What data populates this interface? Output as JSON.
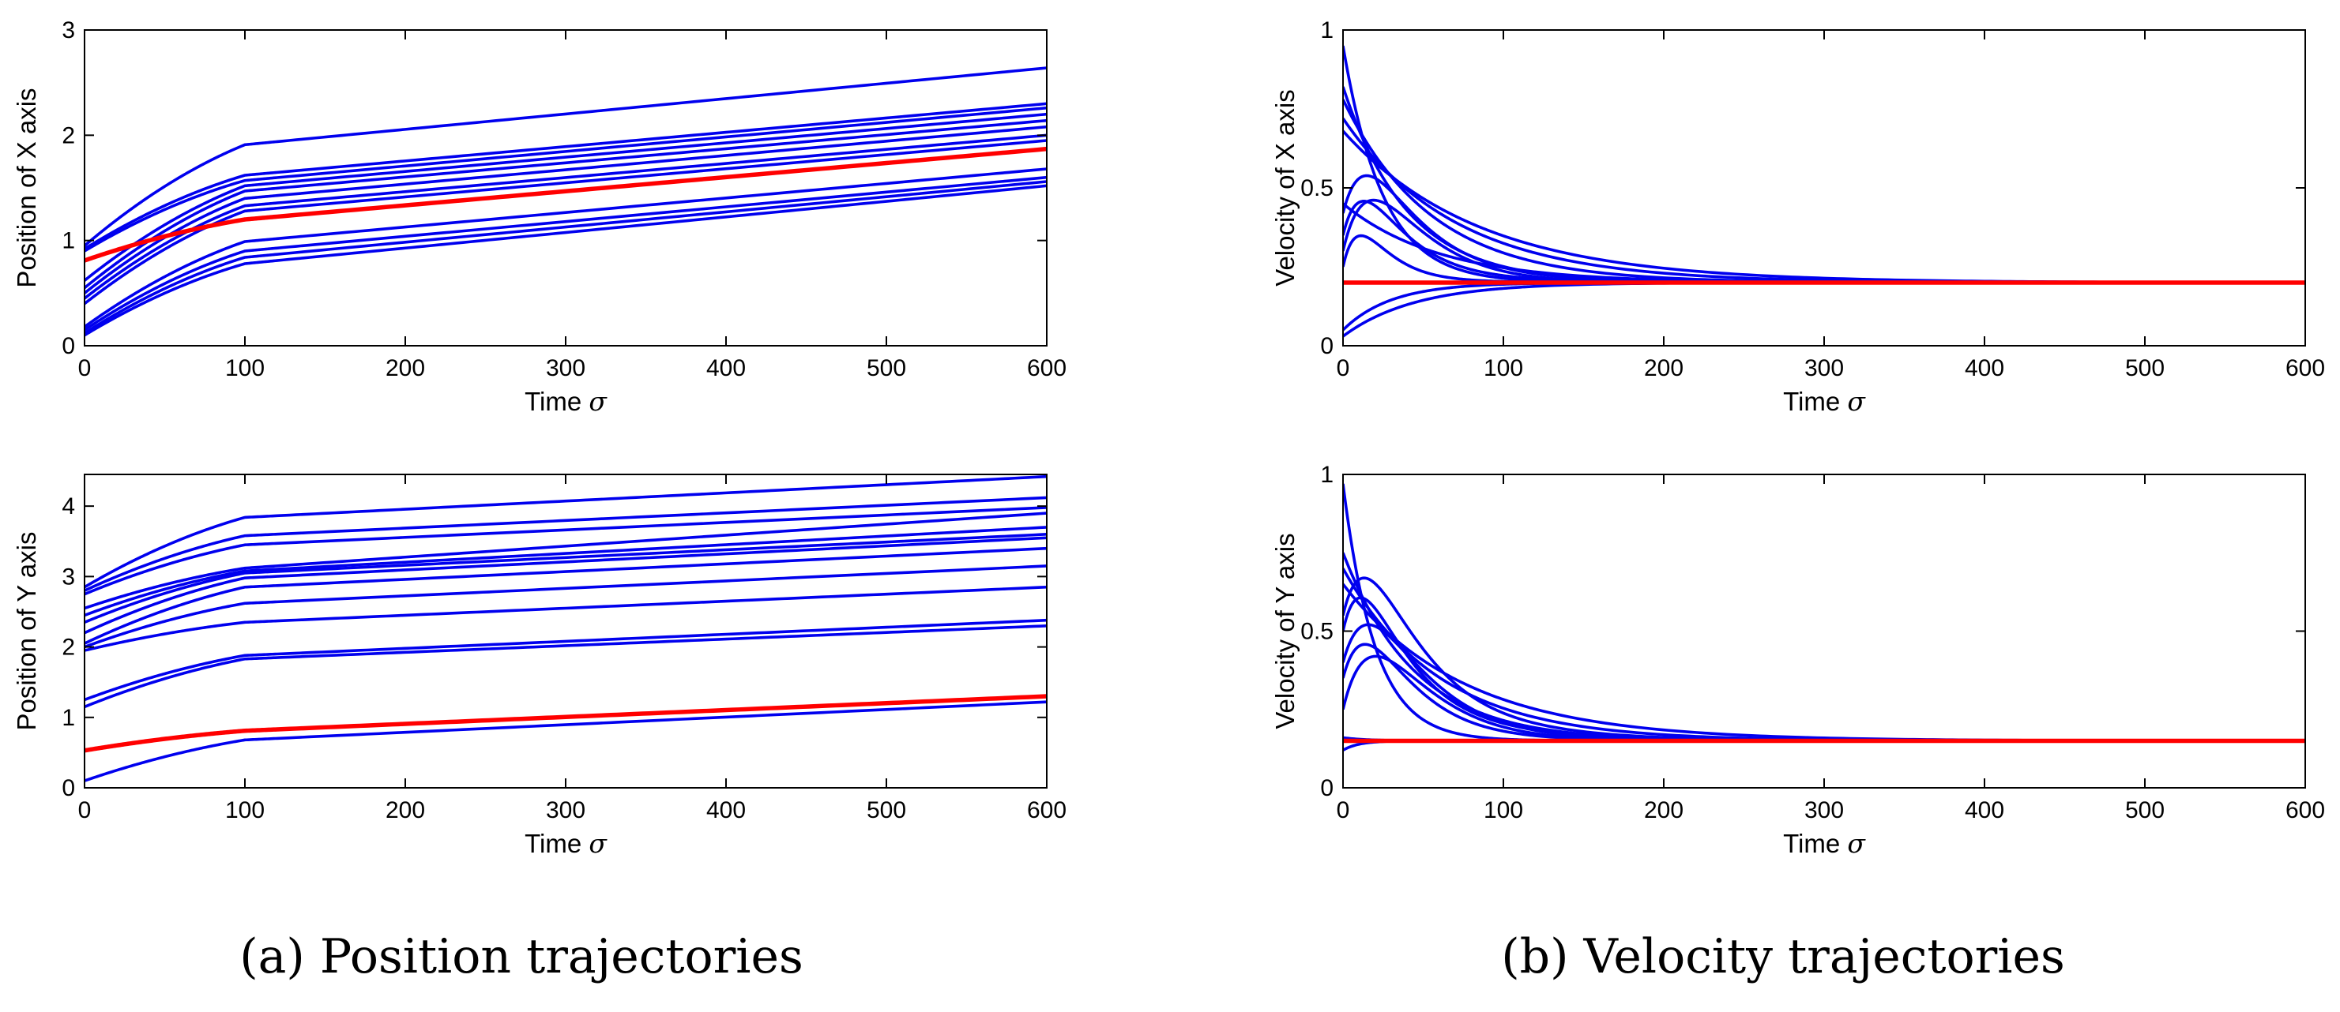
{
  "figure": {
    "captions": {
      "a": "(a)  Position trajectories",
      "b": "(b)  Velocity trajectories"
    }
  },
  "colors": {
    "follower": "#0000ee",
    "leader": "#ff0000"
  },
  "chart_data": [
    {
      "id": "pos_x",
      "type": "line",
      "ylabel": "Position of X axis",
      "xlabel": "Time",
      "xlabel_symbol": "σ",
      "xlim": [
        0,
        600
      ],
      "ylim": [
        0,
        3
      ],
      "xticks": [
        0,
        100,
        200,
        300,
        400,
        500,
        600
      ],
      "yticks": [
        0,
        1,
        2,
        3
      ],
      "series": [
        {
          "name": "follower 1",
          "kind": "pos",
          "y0": 0.95,
          "y100": 1.91,
          "y600": 2.64
        },
        {
          "name": "follower 2",
          "kind": "pos",
          "y0": 0.92,
          "y100": 1.62,
          "y600": 2.3
        },
        {
          "name": "follower 3",
          "kind": "pos",
          "y0": 0.9,
          "y100": 1.57,
          "y600": 2.26
        },
        {
          "name": "follower 4",
          "kind": "pos",
          "y0": 0.62,
          "y100": 1.52,
          "y600": 2.2
        },
        {
          "name": "follower 5",
          "kind": "pos",
          "y0": 0.55,
          "y100": 1.47,
          "y600": 2.14
        },
        {
          "name": "follower 6",
          "kind": "pos",
          "y0": 0.5,
          "y100": 1.4,
          "y600": 2.08
        },
        {
          "name": "follower 7",
          "kind": "pos",
          "y0": 0.45,
          "y100": 1.33,
          "y600": 2.0
        },
        {
          "name": "follower 8",
          "kind": "pos",
          "y0": 0.4,
          "y100": 1.28,
          "y600": 1.95
        },
        {
          "name": "follower 9",
          "kind": "pos",
          "y0": 0.18,
          "y100": 0.99,
          "y600": 1.68
        },
        {
          "name": "follower 10",
          "kind": "pos",
          "y0": 0.15,
          "y100": 0.9,
          "y600": 1.6
        },
        {
          "name": "follower 11",
          "kind": "pos",
          "y0": 0.12,
          "y100": 0.84,
          "y600": 1.56
        },
        {
          "name": "follower 12",
          "kind": "pos",
          "y0": 0.1,
          "y100": 0.78,
          "y600": 1.52
        },
        {
          "name": "leader",
          "kind": "pos",
          "leader": true,
          "y0": 0.81,
          "y100": 1.2,
          "y600": 1.87
        }
      ]
    },
    {
      "id": "pos_y",
      "type": "line",
      "ylabel": "Position of Y axis",
      "xlabel": "Time",
      "xlabel_symbol": "σ",
      "xlim": [
        0,
        600
      ],
      "ylim": [
        0,
        4.45
      ],
      "xticks": [
        0,
        100,
        200,
        300,
        400,
        500,
        600
      ],
      "yticks": [
        0,
        1,
        2,
        3,
        4
      ],
      "series": [
        {
          "name": "follower 1",
          "kind": "pos",
          "y0": 2.85,
          "y100": 3.84,
          "y600": 4.42
        },
        {
          "name": "follower 2",
          "kind": "pos",
          "y0": 2.8,
          "y100": 3.58,
          "y600": 4.12
        },
        {
          "name": "follower 3",
          "kind": "pos",
          "y0": 2.75,
          "y100": 3.45,
          "y600": 3.98
        },
        {
          "name": "follower 4",
          "kind": "pos",
          "y0": 2.55,
          "y100": 3.12,
          "y600": 3.9
        },
        {
          "name": "follower 5",
          "kind": "pos",
          "y0": 2.45,
          "y100": 3.08,
          "y600": 3.7
        },
        {
          "name": "follower 6",
          "kind": "pos",
          "y0": 2.35,
          "y100": 3.05,
          "y600": 3.6
        },
        {
          "name": "follower 7",
          "kind": "pos",
          "y0": 2.2,
          "y100": 2.98,
          "y600": 3.55
        },
        {
          "name": "follower 8",
          "kind": "pos",
          "y0": 2.05,
          "y100": 2.85,
          "y600": 3.4
        },
        {
          "name": "follower 9",
          "kind": "pos",
          "y0": 2.0,
          "y100": 2.62,
          "y600": 3.15
        },
        {
          "name": "follower 10",
          "kind": "pos",
          "y0": 1.95,
          "y100": 2.35,
          "y600": 2.85
        },
        {
          "name": "follower 11",
          "kind": "pos",
          "y0": 1.25,
          "y100": 1.88,
          "y600": 2.38
        },
        {
          "name": "follower 12",
          "kind": "pos",
          "y0": 1.15,
          "y100": 1.83,
          "y600": 2.3
        },
        {
          "name": "follower 13",
          "kind": "pos",
          "y0": 0.1,
          "y100": 0.68,
          "y600": 1.22
        },
        {
          "name": "leader",
          "kind": "pos",
          "leader": true,
          "y0": 0.53,
          "y100": 0.81,
          "y600": 1.3
        }
      ]
    },
    {
      "id": "vel_x",
      "type": "line",
      "ylabel": "Velocity of X axis",
      "xlabel": "Time",
      "xlabel_symbol": "σ",
      "xlim": [
        0,
        600
      ],
      "ylim": [
        0,
        1
      ],
      "xticks": [
        0,
        100,
        200,
        300,
        400,
        500,
        600
      ],
      "yticks": [
        0,
        0.5,
        1
      ],
      "final": 0.2,
      "series": [
        {
          "name": "follower 1",
          "kind": "vel",
          "v0": 0.95,
          "tau": 25
        },
        {
          "name": "follower 2",
          "kind": "vel",
          "v0": 0.82,
          "tau": 40
        },
        {
          "name": "follower 3",
          "kind": "vel",
          "v0": 0.78,
          "tau": 55
        },
        {
          "name": "follower 4",
          "kind": "vel",
          "v0": 0.72,
          "tau": 70
        },
        {
          "name": "follower 5",
          "kind": "vel",
          "v0": 0.68,
          "tau": 85
        },
        {
          "name": "follower 6",
          "kind": "vel",
          "v0": 0.45,
          "tau": 60
        },
        {
          "name": "follower 7",
          "kind": "vel",
          "v0": 0.42,
          "tau": 50,
          "a": 0.25,
          "b": 25
        },
        {
          "name": "follower 8",
          "kind": "vel",
          "v0": 0.35,
          "tau": 45,
          "a": 0.2,
          "b": 20
        },
        {
          "name": "follower 9",
          "kind": "vel",
          "v0": 0.3,
          "tau": 40,
          "a": 0.3,
          "b": 30
        },
        {
          "name": "follower 10",
          "kind": "vel",
          "v0": 0.25,
          "tau": 35,
          "a": 0.15,
          "b": 15
        },
        {
          "name": "follower 11",
          "kind": "vel",
          "v0": 0.05,
          "tau": 30
        },
        {
          "name": "follower 12",
          "kind": "vel",
          "v0": 0.03,
          "tau": 45
        },
        {
          "name": "leader",
          "kind": "const",
          "leader": true,
          "value": 0.2
        }
      ]
    },
    {
      "id": "vel_y",
      "type": "line",
      "ylabel": "Velocity of Y axis",
      "xlabel": "Time",
      "xlabel_symbol": "σ",
      "xlim": [
        0,
        600
      ],
      "ylim": [
        0,
        1
      ],
      "xticks": [
        0,
        100,
        200,
        300,
        400,
        500,
        600
      ],
      "yticks": [
        0,
        0.5,
        1
      ],
      "final": 0.15,
      "series": [
        {
          "name": "follower 1",
          "kind": "vel",
          "v0": 0.97,
          "tau": 20
        },
        {
          "name": "follower 2",
          "kind": "vel",
          "v0": 0.75,
          "tau": 45
        },
        {
          "name": "follower 3",
          "kind": "vel",
          "v0": 0.7,
          "tau": 60
        },
        {
          "name": "follower 4",
          "kind": "vel",
          "v0": 0.65,
          "tau": 75
        },
        {
          "name": "follower 5",
          "kind": "vel",
          "v0": 0.55,
          "tau": 55,
          "a": 0.3,
          "b": 25
        },
        {
          "name": "follower 6",
          "kind": "vel",
          "v0": 0.5,
          "tau": 50,
          "a": 0.25,
          "b": 20
        },
        {
          "name": "follower 7",
          "kind": "vel",
          "v0": 0.4,
          "tau": 45,
          "a": 0.3,
          "b": 30
        },
        {
          "name": "follower 8",
          "kind": "vel",
          "v0": 0.35,
          "tau": 40,
          "a": 0.25,
          "b": 25
        },
        {
          "name": "follower 9",
          "kind": "vel",
          "v0": 0.25,
          "tau": 35,
          "a": 0.35,
          "b": 35
        },
        {
          "name": "follower 10",
          "kind": "vel",
          "v0": 0.16,
          "tau": 15
        },
        {
          "name": "follower 11",
          "kind": "vel",
          "v0": 0.12,
          "tau": 10
        },
        {
          "name": "leader",
          "kind": "const",
          "leader": true,
          "value": 0.15
        }
      ]
    }
  ]
}
